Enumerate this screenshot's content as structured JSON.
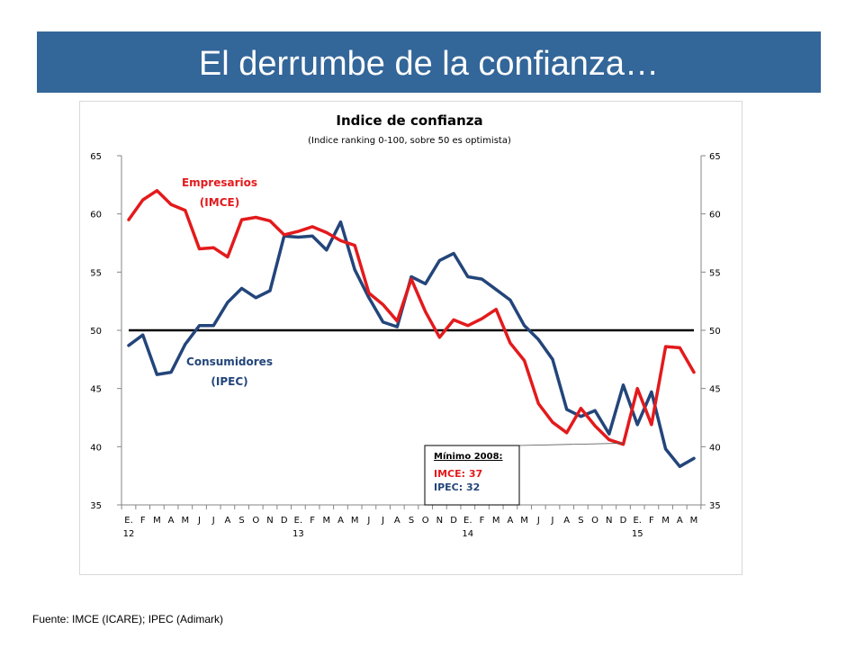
{
  "slide": {
    "title": "El derrumbe de la confianza…",
    "source": "Fuente: IMCE (ICARE); IPEC (Adimark)"
  },
  "colors": {
    "banner": "#336699",
    "imce": "#e31a1c",
    "ipec": "#23457a",
    "threshold": "#000000"
  },
  "chart_data": {
    "type": "line",
    "title": "Indice de confianza",
    "subtitle": "(Indice ranking 0-100, sobre 50 es optimista)",
    "ylim": [
      35,
      65
    ],
    "yticks": [
      35,
      40,
      45,
      50,
      55,
      60,
      65
    ],
    "grid": false,
    "x": [
      "E.",
      "F",
      "M",
      "A",
      "M",
      "J",
      "J",
      "A",
      "S",
      "O",
      "N",
      "D",
      "E.",
      "F",
      "M",
      "A",
      "M",
      "J",
      "J",
      "A",
      "S",
      "O",
      "N",
      "D",
      "E.",
      "F",
      "M",
      "A",
      "M",
      "J",
      "J",
      "A",
      "S",
      "O",
      "N",
      "D",
      "E.",
      "F",
      "M",
      "A",
      "M"
    ],
    "year_labels": [
      {
        "label": "12",
        "index": 0
      },
      {
        "label": "13",
        "index": 12
      },
      {
        "label": "14",
        "index": 24
      },
      {
        "label": "15",
        "index": 36
      }
    ],
    "threshold": 50,
    "series": [
      {
        "name": "Empresarios (IMCE)",
        "label_lines": [
          "Empresarios",
          "(IMCE)"
        ],
        "color": "#e31a1c",
        "values": [
          59.5,
          61.2,
          62.0,
          60.8,
          60.3,
          57.0,
          57.1,
          56.3,
          59.5,
          59.7,
          59.4,
          58.2,
          58.5,
          58.9,
          58.4,
          57.7,
          57.3,
          53.2,
          52.2,
          50.8,
          54.4,
          51.6,
          49.4,
          50.9,
          50.4,
          51.0,
          51.8,
          48.9,
          47.4,
          43.7,
          42.1,
          41.2,
          43.3,
          41.8,
          40.6,
          40.2,
          45.0,
          41.9,
          48.6,
          48.5,
          46.4
        ]
      },
      {
        "name": "Consumidores (IPEC)",
        "label_lines": [
          "Consumidores",
          "(IPEC)"
        ],
        "color": "#23457a",
        "values": [
          48.7,
          49.6,
          46.2,
          46.4,
          48.8,
          50.4,
          50.4,
          52.4,
          53.6,
          52.8,
          53.4,
          58.1,
          58.0,
          58.1,
          56.9,
          59.3,
          55.2,
          52.8,
          50.7,
          50.3,
          54.6,
          54.0,
          56.0,
          56.6,
          54.6,
          54.4,
          53.5,
          52.6,
          50.4,
          49.2,
          47.5,
          43.2,
          42.6,
          43.1,
          41.1,
          45.3,
          41.9,
          44.7,
          39.8,
          38.3,
          39.0
        ]
      }
    ],
    "annotation": {
      "title": "Mínimo 2008:",
      "lines": [
        {
          "text": "IMCE: 37",
          "color": "#e31a1c"
        },
        {
          "text": "IPEC: 32",
          "color": "#23457a"
        }
      ]
    }
  }
}
